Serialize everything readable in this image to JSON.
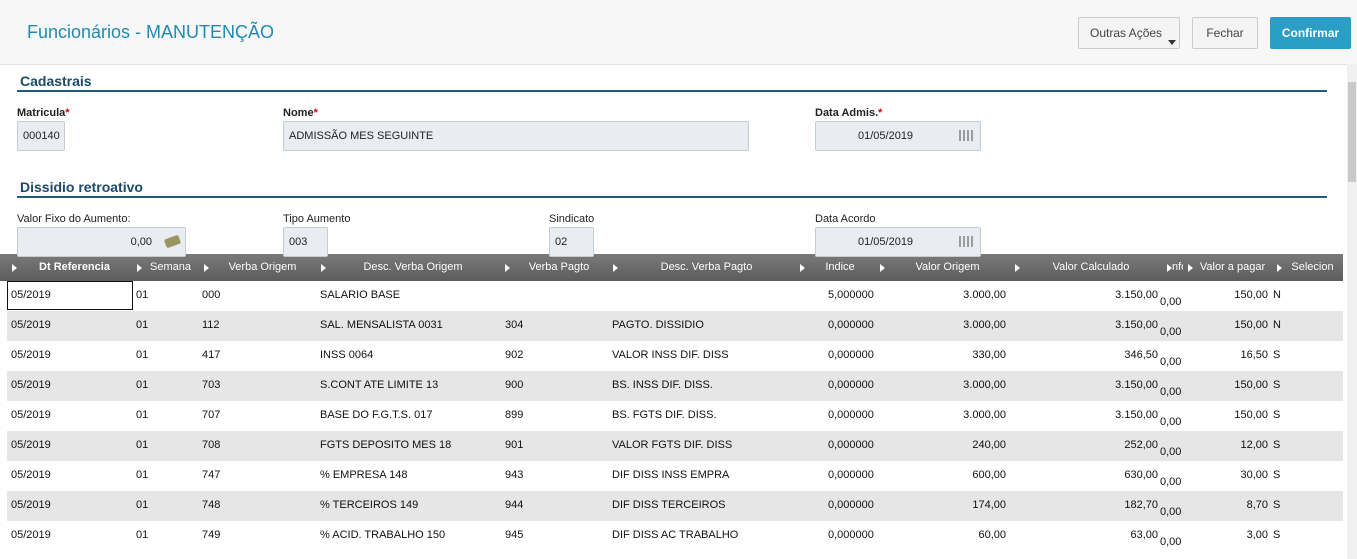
{
  "header": {
    "title": "Funcionários - MANUTENÇÃO",
    "buttons": [
      "Outras Ações",
      "Fechar",
      "Confirmar"
    ]
  },
  "required_mark": "*",
  "cadastrais": {
    "title": "Cadastrais",
    "fields": [
      {
        "label": "Matricula",
        "value": "000140"
      },
      {
        "label": "Nome",
        "value": "ADMISSÃO MES SEGUINTE"
      },
      {
        "label": "Data Admis.",
        "value": "01/05/2019"
      }
    ]
  },
  "dissidio": {
    "title": "Dissidio retroativo",
    "fields": [
      {
        "label": "Valor Fixo do Aumento:",
        "value": "0,00"
      },
      {
        "label": "Tipo Aumento",
        "value": "003"
      },
      {
        "label": "Sindicato",
        "value": "02"
      },
      {
        "label": "Data Acordo",
        "value": "01/05/2019"
      }
    ]
  },
  "table": {
    "columns": [
      "Dt Referencia",
      "Semana",
      "Verba Origem",
      "Desc. Verba Origem",
      "Verba Pagto",
      "Desc. Verba Pagto",
      "Indice",
      "Valor Origem",
      "Valor Calculado",
      "nfo",
      "Valor a pagar",
      "Selecion"
    ],
    "rows": [
      [
        "05/2019",
        "01",
        "000",
        "SALARIO BASE",
        null,
        null,
        "5,000000",
        "3.000,00",
        "3.150,00",
        "0,00",
        "150,00",
        "N"
      ],
      [
        "05/2019",
        "01",
        "112",
        "SAL. MENSALISTA 0031",
        "304",
        "PAGTO. DISSIDIO",
        "0,000000",
        "3.000,00",
        "3.150,00",
        "0,00",
        "150,00",
        "N"
      ],
      [
        "05/2019",
        "01",
        "417",
        "INSS 0064",
        "902",
        "VALOR INSS DIF. DISS",
        "0,000000",
        "330,00",
        "346,50",
        "0,00",
        "16,50",
        "S"
      ],
      [
        "05/2019",
        "01",
        "703",
        "S.CONT ATE LIMITE 13",
        "900",
        "BS. INSS DIF. DISS.",
        "0,000000",
        "3.000,00",
        "3.150,00",
        "0,00",
        "150,00",
        "S"
      ],
      [
        "05/2019",
        "01",
        "707",
        "BASE DO F.G.T.S. 017",
        "899",
        "BS. FGTS DIF. DISS.",
        "0,000000",
        "3.000,00",
        "3.150,00",
        "0,00",
        "150,00",
        "S"
      ],
      [
        "05/2019",
        "01",
        "708",
        "FGTS DEPOSITO MES 18",
        "901",
        "VALOR FGTS DIF. DISS",
        "0,000000",
        "240,00",
        "252,00",
        "0,00",
        "12,00",
        "S"
      ],
      [
        "05/2019",
        "01",
        "747",
        "% EMPRESA  148",
        "943",
        "DIF DISS INSS EMPRA",
        "0,000000",
        "600,00",
        "630,00",
        "0,00",
        "30,00",
        "S"
      ],
      [
        "05/2019",
        "01",
        "748",
        "% TERCEIROS 149",
        "944",
        "DIF DISS TERCEIROS",
        "0,000000",
        "174,00",
        "182,70",
        "0,00",
        "8,70",
        "S"
      ],
      [
        "05/2019",
        "01",
        "749",
        "% ACID. TRABALHO 150",
        "945",
        "DIF DISS AC TRABALHO",
        "0,000000",
        "60,00",
        "63,00",
        "0,00",
        "3,00",
        "S"
      ]
    ]
  }
}
